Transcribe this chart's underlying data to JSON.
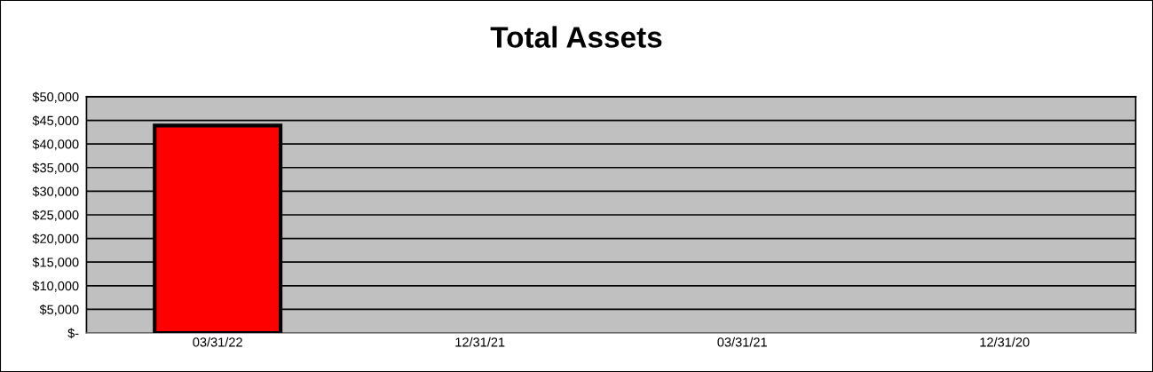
{
  "chart_data": {
    "type": "bar",
    "title": "Total Assets",
    "categories": [
      "03/31/22",
      "12/31/21",
      "03/31/21",
      "12/31/20"
    ],
    "values": [
      43900,
      null,
      null,
      null
    ],
    "color": "#ff0000",
    "ylim": [
      0,
      50000
    ],
    "yticks": [
      {
        "value": 0,
        "label": "$-"
      },
      {
        "value": 5000,
        "label": "$5,000"
      },
      {
        "value": 10000,
        "label": "$10,000"
      },
      {
        "value": 15000,
        "label": "$15,000"
      },
      {
        "value": 20000,
        "label": "$20,000"
      },
      {
        "value": 25000,
        "label": "$25,000"
      },
      {
        "value": 30000,
        "label": "$30,000"
      },
      {
        "value": 35000,
        "label": "$35,000"
      },
      {
        "value": 40000,
        "label": "$40,000"
      },
      {
        "value": 45000,
        "label": "$45,000"
      },
      {
        "value": 50000,
        "label": "$50,000"
      }
    ],
    "grid": "y"
  }
}
